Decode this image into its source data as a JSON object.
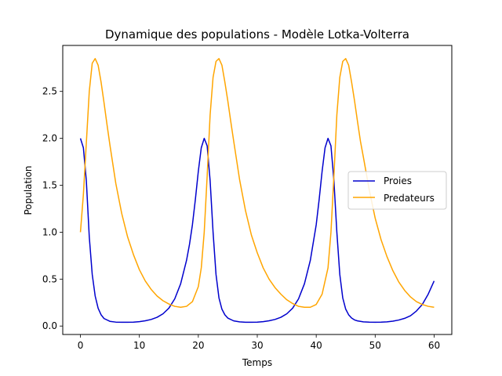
{
  "chart_data": {
    "type": "line",
    "title": "Dynamique des populations - Modèle Lotka-Volterra",
    "xlabel": "Temps",
    "ylabel": "Population",
    "xlim": [
      -3,
      63
    ],
    "ylim": [
      -0.09,
      2.99
    ],
    "xticks": [
      0,
      10,
      20,
      30,
      40,
      50,
      60
    ],
    "yticks": [
      0.0,
      0.5,
      1.0,
      1.5,
      2.0,
      2.5
    ],
    "xtick_labels": [
      "0",
      "10",
      "20",
      "30",
      "40",
      "50",
      "60"
    ],
    "ytick_labels": [
      "0.0",
      "0.5",
      "1.0",
      "1.5",
      "2.0",
      "2.5"
    ],
    "grid": false,
    "legend_position": "center-right",
    "series": [
      {
        "name": "Proies",
        "color": "#0000cd",
        "x": [
          0,
          0.5,
          1,
          1.5,
          2,
          2.5,
          3,
          3.5,
          4,
          5,
          6,
          7,
          8,
          9,
          10,
          11,
          12,
          13,
          14,
          15,
          16,
          17,
          18,
          18.5,
          19,
          19.5,
          20,
          20.5,
          21,
          21.5,
          22,
          22.5,
          23,
          23.5,
          24,
          24.5,
          25,
          26,
          27,
          28,
          29,
          30,
          31,
          32,
          33,
          34,
          35,
          36,
          37,
          38,
          39,
          40,
          40.5,
          41,
          41.5,
          42,
          42.5,
          43,
          43.5,
          44,
          44.5,
          45,
          45.5,
          46,
          46.5,
          47,
          48,
          49,
          50,
          51,
          52,
          53,
          54,
          55,
          56,
          57,
          58,
          59,
          60
        ],
        "y": [
          2.0,
          1.9,
          1.55,
          0.95,
          0.55,
          0.32,
          0.19,
          0.12,
          0.08,
          0.05,
          0.042,
          0.04,
          0.04,
          0.042,
          0.047,
          0.056,
          0.07,
          0.093,
          0.13,
          0.19,
          0.29,
          0.45,
          0.7,
          0.87,
          1.08,
          1.35,
          1.65,
          1.9,
          2.0,
          1.92,
          1.55,
          1.0,
          0.55,
          0.3,
          0.18,
          0.12,
          0.085,
          0.055,
          0.045,
          0.04,
          0.04,
          0.042,
          0.047,
          0.056,
          0.07,
          0.093,
          0.13,
          0.19,
          0.29,
          0.45,
          0.7,
          1.08,
          1.35,
          1.65,
          1.9,
          2.0,
          1.92,
          1.55,
          1.0,
          0.55,
          0.3,
          0.18,
          0.12,
          0.085,
          0.065,
          0.055,
          0.045,
          0.041,
          0.04,
          0.041,
          0.045,
          0.052,
          0.064,
          0.082,
          0.11,
          0.16,
          0.23,
          0.34,
          0.48
        ]
      },
      {
        "name": "Predateurs",
        "color": "#ffa500",
        "x": [
          0,
          0.5,
          1,
          1.5,
          2,
          2.5,
          3,
          3.5,
          4,
          4.5,
          5,
          6,
          7,
          8,
          9,
          10,
          11,
          12,
          13,
          14,
          15,
          16,
          17,
          18,
          19,
          20,
          20.5,
          21,
          21.5,
          22,
          22.5,
          23,
          23.5,
          24,
          24.5,
          25,
          25.5,
          26,
          27,
          28,
          29,
          30,
          31,
          32,
          33,
          34,
          35,
          36,
          37,
          38,
          39,
          40,
          41,
          42,
          42.5,
          43,
          43.5,
          44,
          44.5,
          45,
          45.5,
          46,
          46.5,
          47,
          47.5,
          48,
          49,
          50,
          51,
          52,
          53,
          54,
          55,
          56,
          57,
          58,
          59,
          60
        ],
        "y": [
          1.0,
          1.4,
          1.95,
          2.5,
          2.8,
          2.85,
          2.78,
          2.6,
          2.38,
          2.15,
          1.93,
          1.52,
          1.2,
          0.95,
          0.76,
          0.6,
          0.48,
          0.39,
          0.32,
          0.27,
          0.235,
          0.21,
          0.2,
          0.21,
          0.26,
          0.42,
          0.62,
          1.0,
          1.6,
          2.25,
          2.65,
          2.82,
          2.85,
          2.78,
          2.6,
          2.4,
          2.18,
          1.97,
          1.56,
          1.23,
          0.97,
          0.78,
          0.62,
          0.5,
          0.41,
          0.34,
          0.28,
          0.24,
          0.21,
          0.2,
          0.2,
          0.23,
          0.34,
          0.62,
          1.0,
          1.6,
          2.25,
          2.65,
          2.82,
          2.85,
          2.78,
          2.6,
          2.4,
          2.18,
          1.97,
          1.8,
          1.45,
          1.15,
          0.92,
          0.74,
          0.59,
          0.47,
          0.38,
          0.31,
          0.26,
          0.23,
          0.21,
          0.2
        ]
      }
    ]
  }
}
